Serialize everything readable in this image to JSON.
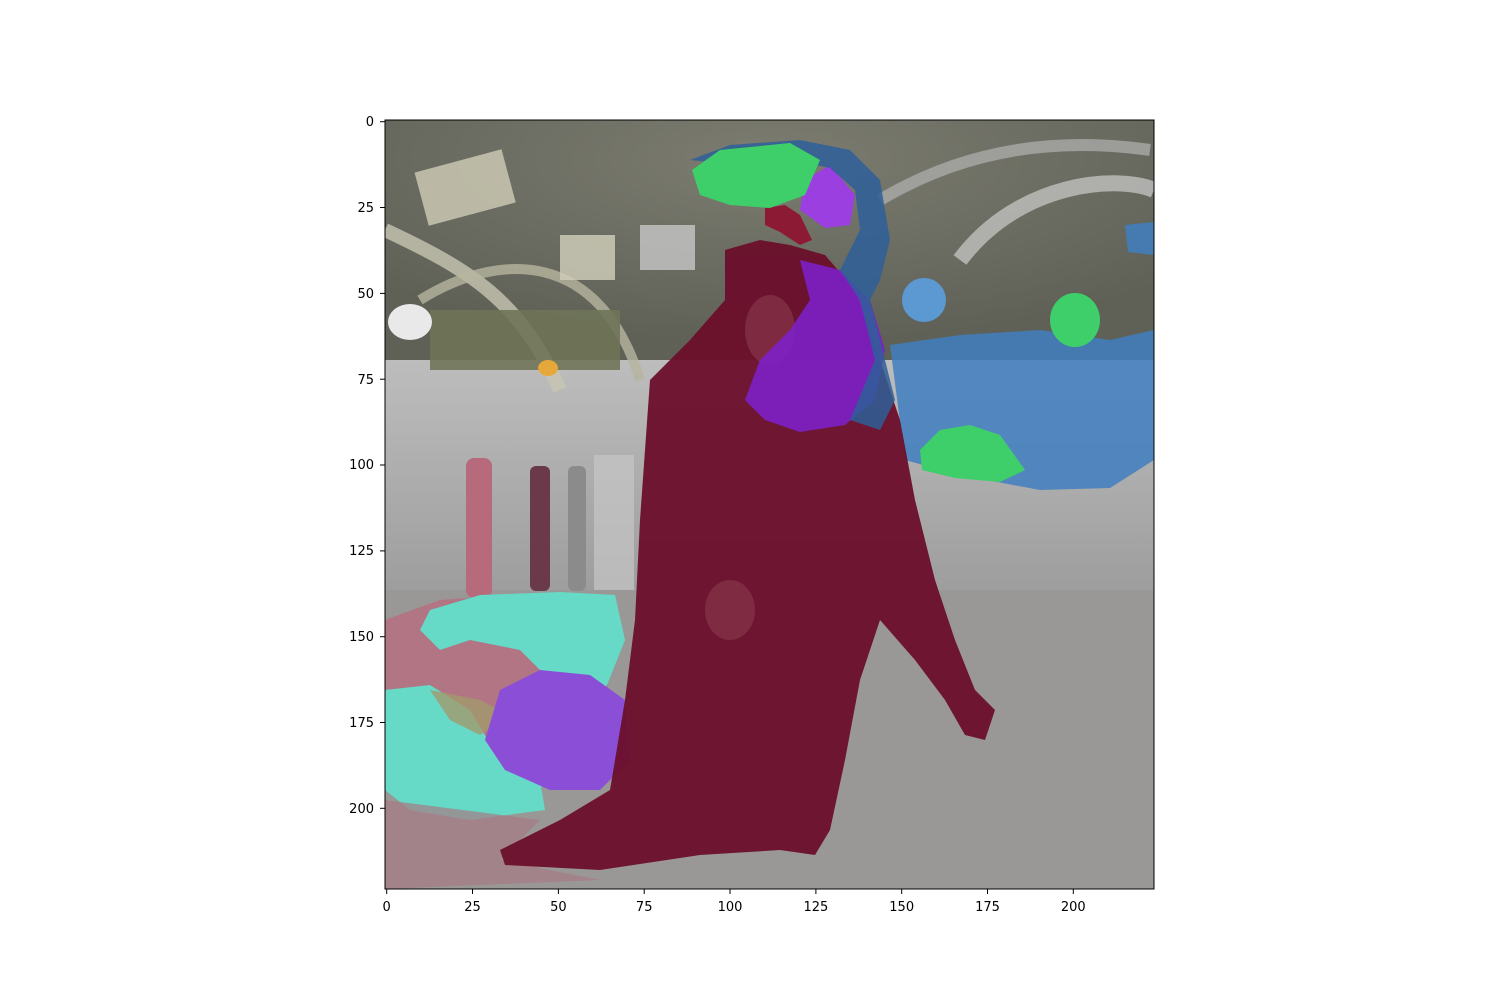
{
  "image": {
    "description_free_render": true,
    "x_ticks": [
      "0",
      "25",
      "50",
      "75",
      "100",
      "125",
      "150",
      "175",
      "200"
    ],
    "y_ticks": [
      "0",
      "25",
      "50",
      "75",
      "100",
      "125",
      "150",
      "175",
      "200"
    ],
    "x_range": [
      0,
      224
    ],
    "y_range": [
      0,
      224
    ],
    "colors": {
      "floor": "#9a9896",
      "wall": "#a8a8a8",
      "ceiling": "#6f6f64",
      "dark_red_segment": "#6b0f2b",
      "rose_segment": "#b86a7d",
      "cyan_segment": "#66d9c7",
      "purple_segment": "#8a4fd6",
      "blue_segment": "#3f7fc0",
      "green_segment": "#3fcf6a",
      "violet_segment": "#7d20c8",
      "orange_segment": "#e7a83b"
    }
  }
}
